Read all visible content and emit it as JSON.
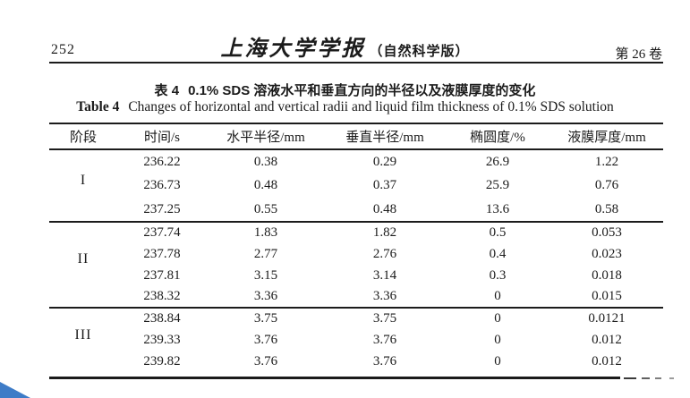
{
  "page": {
    "number": "252",
    "journal_title": "上海大学学报",
    "journal_subtitle": "（自然科学版）",
    "volume": "第 26 卷"
  },
  "caption": {
    "zh_label": "表 4",
    "zh_text": "0.1% SDS 溶液水平和垂直方向的半径以及液膜厚度的变化",
    "en_label": "Table 4",
    "en_text": "Changes of horizontal and vertical radii and liquid film thickness of 0.1% SDS solution"
  },
  "table": {
    "headers": [
      "阶段",
      "时间/s",
      "水平半径/mm",
      "垂直半径/mm",
      "椭圆度/%",
      "液膜厚度/mm"
    ],
    "groups": [
      {
        "stage": "I",
        "rows": [
          [
            "236.22",
            "0.38",
            "0.29",
            "26.9",
            "1.22"
          ],
          [
            "236.73",
            "0.48",
            "0.37",
            "25.9",
            "0.76"
          ],
          [
            "237.25",
            "0.55",
            "0.48",
            "13.6",
            "0.58"
          ]
        ]
      },
      {
        "stage": "II",
        "rows": [
          [
            "237.74",
            "1.83",
            "1.82",
            "0.5",
            "0.053"
          ],
          [
            "237.78",
            "2.77",
            "2.76",
            "0.4",
            "0.023"
          ],
          [
            "237.81",
            "3.15",
            "3.14",
            "0.3",
            "0.018"
          ],
          [
            "238.32",
            "3.36",
            "3.36",
            "0",
            "0.015"
          ]
        ]
      },
      {
        "stage": "III",
        "rows": [
          [
            "238.84",
            "3.75",
            "3.75",
            "0",
            "0.0121"
          ],
          [
            "239.33",
            "3.76",
            "3.76",
            "0",
            "0.012"
          ],
          [
            "239.82",
            "3.76",
            "3.76",
            "0",
            "0.012"
          ]
        ]
      }
    ]
  },
  "artifact": {
    "corner_triangle_color": "#3e7cc7"
  }
}
